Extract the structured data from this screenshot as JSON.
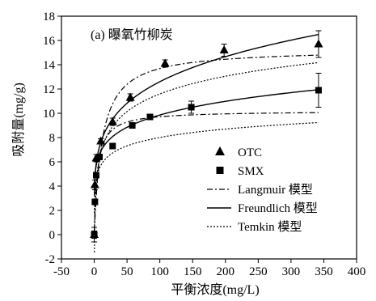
{
  "chart_data": {
    "type": "scatter",
    "title": "(a) 曝氧竹柳炭",
    "xlabel": "平衡浓度(mg/L)",
    "ylabel": "吸附量(mg/g)",
    "xlim": [
      -50,
      400
    ],
    "ylim": [
      -2,
      18
    ],
    "xticks": [
      -50,
      0,
      50,
      100,
      150,
      200,
      250,
      300,
      350,
      400
    ],
    "yticks": [
      -2,
      0,
      2,
      4,
      6,
      8,
      10,
      12,
      14,
      16,
      18
    ],
    "grid": false,
    "legend_position": "bottom-right",
    "series": [
      {
        "name": "OTC",
        "marker": "triangle",
        "points": [
          {
            "x": 0,
            "y": 0,
            "err": 0.6
          },
          {
            "x": 1,
            "y": 4.1,
            "err": 0.4
          },
          {
            "x": 3,
            "y": 6.3,
            "err": 0.3
          },
          {
            "x": 10,
            "y": 7.7,
            "err": 0.2
          },
          {
            "x": 28,
            "y": 9.3,
            "err": 0.3
          },
          {
            "x": 55,
            "y": 11.3,
            "err": 0.3
          },
          {
            "x": 108,
            "y": 14.1,
            "err": 0.3
          },
          {
            "x": 198,
            "y": 15.2,
            "err": 0.5
          },
          {
            "x": 342,
            "y": 15.7,
            "err": 1.1
          }
        ]
      },
      {
        "name": "SMX",
        "marker": "square",
        "points": [
          {
            "x": 0,
            "y": 0,
            "err": 0.3
          },
          {
            "x": 1,
            "y": 2.7,
            "err": 0.2
          },
          {
            "x": 3,
            "y": 4.9,
            "err": 0.2
          },
          {
            "x": 8,
            "y": 6.4,
            "err": 0.2
          },
          {
            "x": 28,
            "y": 7.3,
            "err": 0.2
          },
          {
            "x": 58,
            "y": 9.0,
            "err": 0.2
          },
          {
            "x": 85,
            "y": 9.7,
            "err": 0.2
          },
          {
            "x": 148,
            "y": 10.5,
            "err": 0.5
          },
          {
            "x": 342,
            "y": 11.9,
            "err": 1.4
          }
        ]
      }
    ],
    "fits": [
      {
        "name": "Langmuir 模型",
        "model": "langmuir",
        "style": "dashdot",
        "curves": [
          {
            "qm": 15.3,
            "KL": 0.085
          },
          {
            "qm": 10.2,
            "KL": 0.2
          }
        ]
      },
      {
        "name": "Freundlich 模型",
        "model": "freundlich",
        "style": "solid",
        "curves": [
          {
            "KF": 4.6,
            "n": 4.57
          },
          {
            "KF": 4.8,
            "n": 6.4
          }
        ]
      },
      {
        "name": "Temkin 模型",
        "model": "temkin",
        "style": "dotted",
        "curves": [
          {
            "B": 2.1,
            "KT": 2.5
          },
          {
            "B": 1.0,
            "KT": 30
          }
        ]
      }
    ]
  }
}
